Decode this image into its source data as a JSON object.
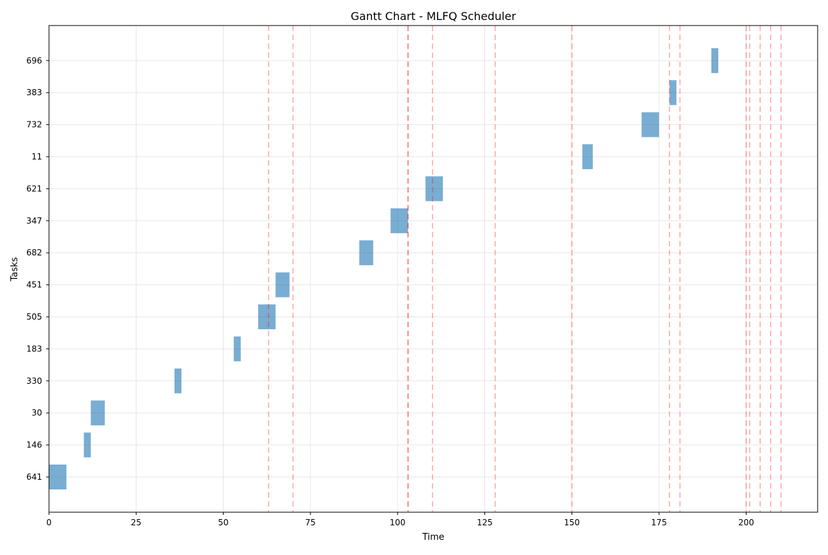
{
  "chart_data": {
    "type": "gantt",
    "title": "Gantt Chart - MLFQ Scheduler",
    "xlabel": "Time",
    "ylabel": "Tasks",
    "xlim": [
      0,
      220.5
    ],
    "x_ticks": [
      0,
      25,
      50,
      75,
      100,
      125,
      150,
      175,
      200
    ],
    "grid": true,
    "bar_color": "#1f77b4",
    "line_color": "#ff0000",
    "tasks": [
      "641",
      "146",
      "30",
      "330",
      "183",
      "505",
      "451",
      "682",
      "347",
      "621",
      "11",
      "732",
      "383",
      "696"
    ],
    "bars": [
      {
        "task": "641",
        "start": 0,
        "end": 5
      },
      {
        "task": "146",
        "start": 10,
        "end": 12
      },
      {
        "task": "30",
        "start": 12,
        "end": 16
      },
      {
        "task": "330",
        "start": 36,
        "end": 38
      },
      {
        "task": "183",
        "start": 53,
        "end": 55
      },
      {
        "task": "505",
        "start": 60,
        "end": 65
      },
      {
        "task": "451",
        "start": 65,
        "end": 69
      },
      {
        "task": "682",
        "start": 89,
        "end": 93
      },
      {
        "task": "347",
        "start": 98,
        "end": 103
      },
      {
        "task": "621",
        "start": 108,
        "end": 113
      },
      {
        "task": "11",
        "start": 153,
        "end": 156
      },
      {
        "task": "732",
        "start": 170,
        "end": 175
      },
      {
        "task": "383",
        "start": 178,
        "end": 180
      },
      {
        "task": "696",
        "start": 190,
        "end": 192
      }
    ],
    "vlines": [
      63,
      70,
      103,
      103,
      110,
      128,
      150,
      178,
      181,
      200,
      201,
      204,
      207,
      210
    ]
  }
}
